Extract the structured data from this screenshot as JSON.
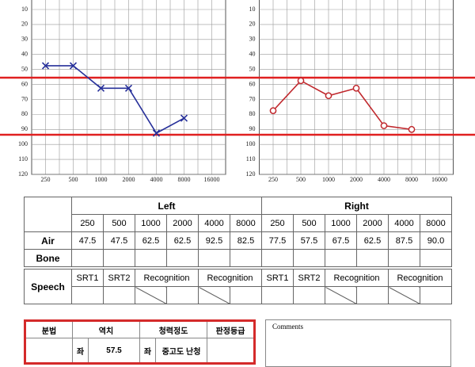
{
  "chart_data": [
    {
      "type": "line",
      "categories": [
        "250",
        "500",
        "1000",
        "2000",
        "4000",
        "8000",
        "16000"
      ],
      "series": [
        {
          "color": "#27309a",
          "marker": "x",
          "values": [
            47.5,
            47.5,
            62.5,
            62.5,
            92.5,
            82.5,
            null
          ]
        }
      ],
      "ylim": [
        120,
        0
      ],
      "yticks": [
        10,
        20,
        30,
        40,
        50,
        60,
        70,
        80,
        90,
        100,
        110,
        120
      ],
      "grid": true
    },
    {
      "type": "line",
      "categories": [
        "250",
        "500",
        "1000",
        "2000",
        "4000",
        "8000",
        "16000"
      ],
      "series": [
        {
          "color": "#c0282d",
          "marker": "circle",
          "values": [
            77.5,
            57.5,
            67.5,
            62.5,
            87.5,
            90.0,
            null
          ]
        }
      ],
      "ylim": [
        120,
        0
      ],
      "yticks": [
        10,
        20,
        30,
        40,
        50,
        60,
        70,
        80,
        90,
        100,
        110,
        120
      ],
      "grid": true
    }
  ],
  "table": {
    "left_header": "Left",
    "right_header": "Right",
    "frequencies": [
      "250",
      "500",
      "1000",
      "2000",
      "4000",
      "8000",
      "250",
      "500",
      "1000",
      "2000",
      "4000",
      "8000"
    ],
    "air_label": "Air",
    "air": [
      "47.5",
      "47.5",
      "62.5",
      "62.5",
      "92.5",
      "82.5",
      "77.5",
      "57.5",
      "67.5",
      "62.5",
      "87.5",
      "90.0"
    ],
    "bone_label": "Bone",
    "speech_label": "Speech",
    "speech_headers": [
      "SRT1",
      "SRT2",
      "Recognition",
      "Recognition",
      "SRT1",
      "SRT2",
      "Recognition",
      "Recognition"
    ]
  },
  "summary": {
    "headers": [
      "분법",
      "역치",
      "청력정도",
      "판정등급"
    ],
    "row": [
      "좌",
      "57.5",
      "좌",
      "중고도 난청"
    ]
  },
  "comments_label": "Comments"
}
